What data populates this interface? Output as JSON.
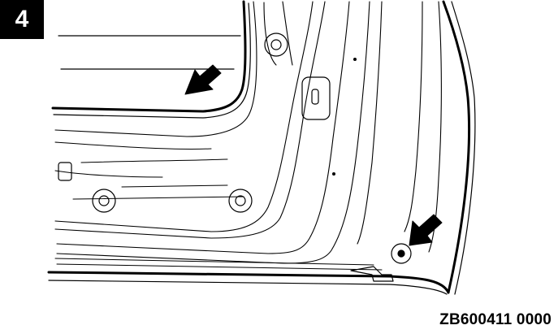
{
  "step": {
    "number": "4"
  },
  "figure": {
    "code": "ZB600411 0000",
    "subject": "door-inner-panel",
    "callouts": [
      {
        "icon": "arrow-icon",
        "target": "window-opening-edge"
      },
      {
        "icon": "arrow-icon",
        "target": "lower-rear-mounting-hole"
      }
    ]
  },
  "colors": {
    "ink": "#000000",
    "background": "#ffffff"
  }
}
